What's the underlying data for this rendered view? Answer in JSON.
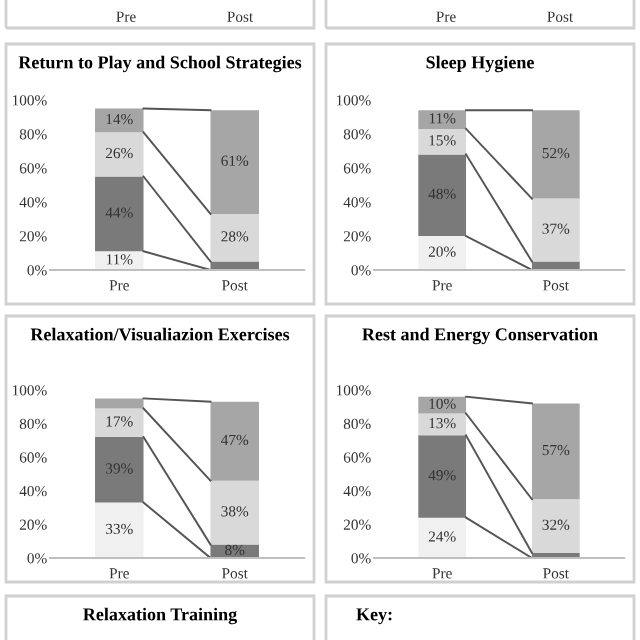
{
  "chart_data": [
    {
      "type": "other",
      "annotations": [
        "Pre",
        "Post"
      ]
    },
    {
      "type": "other",
      "annotations": [
        "Pre",
        "Post"
      ]
    },
    {
      "type": "bar",
      "title": "Return to Play and School Strategies",
      "stacked": true,
      "categories": [
        "Pre",
        "Post"
      ],
      "ylim": [
        0,
        100
      ],
      "yticks": [
        {
          "value": 0,
          "label": "0%"
        },
        {
          "value": 20,
          "label": "20%"
        },
        {
          "value": 40,
          "label": "40%"
        },
        {
          "value": 60,
          "label": "60%"
        },
        {
          "value": 80,
          "label": "80%"
        },
        {
          "value": 100,
          "label": "100%"
        }
      ],
      "grid": false,
      "legend": false,
      "series": [
        {
          "color": "#f0f0f0",
          "values": [
            11,
            0
          ],
          "value_labels": [
            "11%",
            null
          ]
        },
        {
          "color": "#7a7a7a",
          "values": [
            44,
            5
          ],
          "value_labels": [
            "44%",
            null
          ]
        },
        {
          "color": "#d9d9d9",
          "values": [
            26,
            28
          ],
          "value_labels": [
            "26%",
            "28%"
          ]
        },
        {
          "color": "#a6a6a6",
          "values": [
            14,
            61
          ],
          "value_labels": [
            "14%",
            "61%"
          ]
        }
      ]
    },
    {
      "type": "bar",
      "title": "Sleep Hygiene",
      "stacked": true,
      "categories": [
        "Pre",
        "Post"
      ],
      "ylim": [
        0,
        100
      ],
      "yticks": [
        {
          "value": 0,
          "label": "0%"
        },
        {
          "value": 20,
          "label": "20%"
        },
        {
          "value": 40,
          "label": "40%"
        },
        {
          "value": 60,
          "label": "60%"
        },
        {
          "value": 80,
          "label": "80%"
        },
        {
          "value": 100,
          "label": "100%"
        }
      ],
      "grid": false,
      "legend": false,
      "series": [
        {
          "color": "#f0f0f0",
          "values": [
            20,
            0
          ],
          "value_labels": [
            "20%",
            null
          ]
        },
        {
          "color": "#7a7a7a",
          "values": [
            48,
            5
          ],
          "value_labels": [
            "48%",
            null
          ]
        },
        {
          "color": "#d9d9d9",
          "values": [
            15,
            37
          ],
          "value_labels": [
            "15%",
            "37%"
          ]
        },
        {
          "color": "#a6a6a6",
          "values": [
            11,
            52
          ],
          "value_labels": [
            "11%",
            "52%"
          ]
        }
      ]
    },
    {
      "type": "bar",
      "title": "Relaxation/Visualiazion Exercises",
      "stacked": true,
      "categories": [
        "Pre",
        "Post"
      ],
      "ylim": [
        0,
        100
      ],
      "yticks": [
        {
          "value": 0,
          "label": "0%"
        },
        {
          "value": 20,
          "label": "20%"
        },
        {
          "value": 40,
          "label": "40%"
        },
        {
          "value": 60,
          "label": "60%"
        },
        {
          "value": 80,
          "label": "80%"
        },
        {
          "value": 100,
          "label": "100%"
        }
      ],
      "grid": false,
      "legend": false,
      "series": [
        {
          "color": "#f0f0f0",
          "values": [
            33,
            0
          ],
          "value_labels": [
            "33%",
            null
          ]
        },
        {
          "color": "#7a7a7a",
          "values": [
            39,
            8
          ],
          "value_labels": [
            "39%",
            "8%"
          ]
        },
        {
          "color": "#d9d9d9",
          "values": [
            17,
            38
          ],
          "value_labels": [
            "17%",
            "38%"
          ]
        },
        {
          "color": "#a6a6a6",
          "values": [
            6,
            47
          ],
          "value_labels": [
            null,
            "47%"
          ]
        }
      ]
    },
    {
      "type": "bar",
      "title": "Rest and Energy Conservation",
      "stacked": true,
      "categories": [
        "Pre",
        "Post"
      ],
      "ylim": [
        0,
        100
      ],
      "yticks": [
        {
          "value": 0,
          "label": "0%"
        },
        {
          "value": 20,
          "label": "20%"
        },
        {
          "value": 40,
          "label": "40%"
        },
        {
          "value": 60,
          "label": "60%"
        },
        {
          "value": 80,
          "label": "80%"
        },
        {
          "value": 100,
          "label": "100%"
        }
      ],
      "grid": false,
      "legend": false,
      "series": [
        {
          "color": "#f0f0f0",
          "values": [
            24,
            0
          ],
          "value_labels": [
            "24%",
            null
          ]
        },
        {
          "color": "#7a7a7a",
          "values": [
            49,
            3
          ],
          "value_labels": [
            "49%",
            null
          ]
        },
        {
          "color": "#d9d9d9",
          "values": [
            13,
            32
          ],
          "value_labels": [
            "13%",
            "32%"
          ]
        },
        {
          "color": "#a6a6a6",
          "values": [
            10,
            57
          ],
          "value_labels": [
            "10%",
            "57%"
          ]
        }
      ]
    },
    {
      "type": "other",
      "title": "Relaxation Training"
    },
    {
      "type": "other",
      "annotations": [
        "Key:"
      ]
    }
  ]
}
